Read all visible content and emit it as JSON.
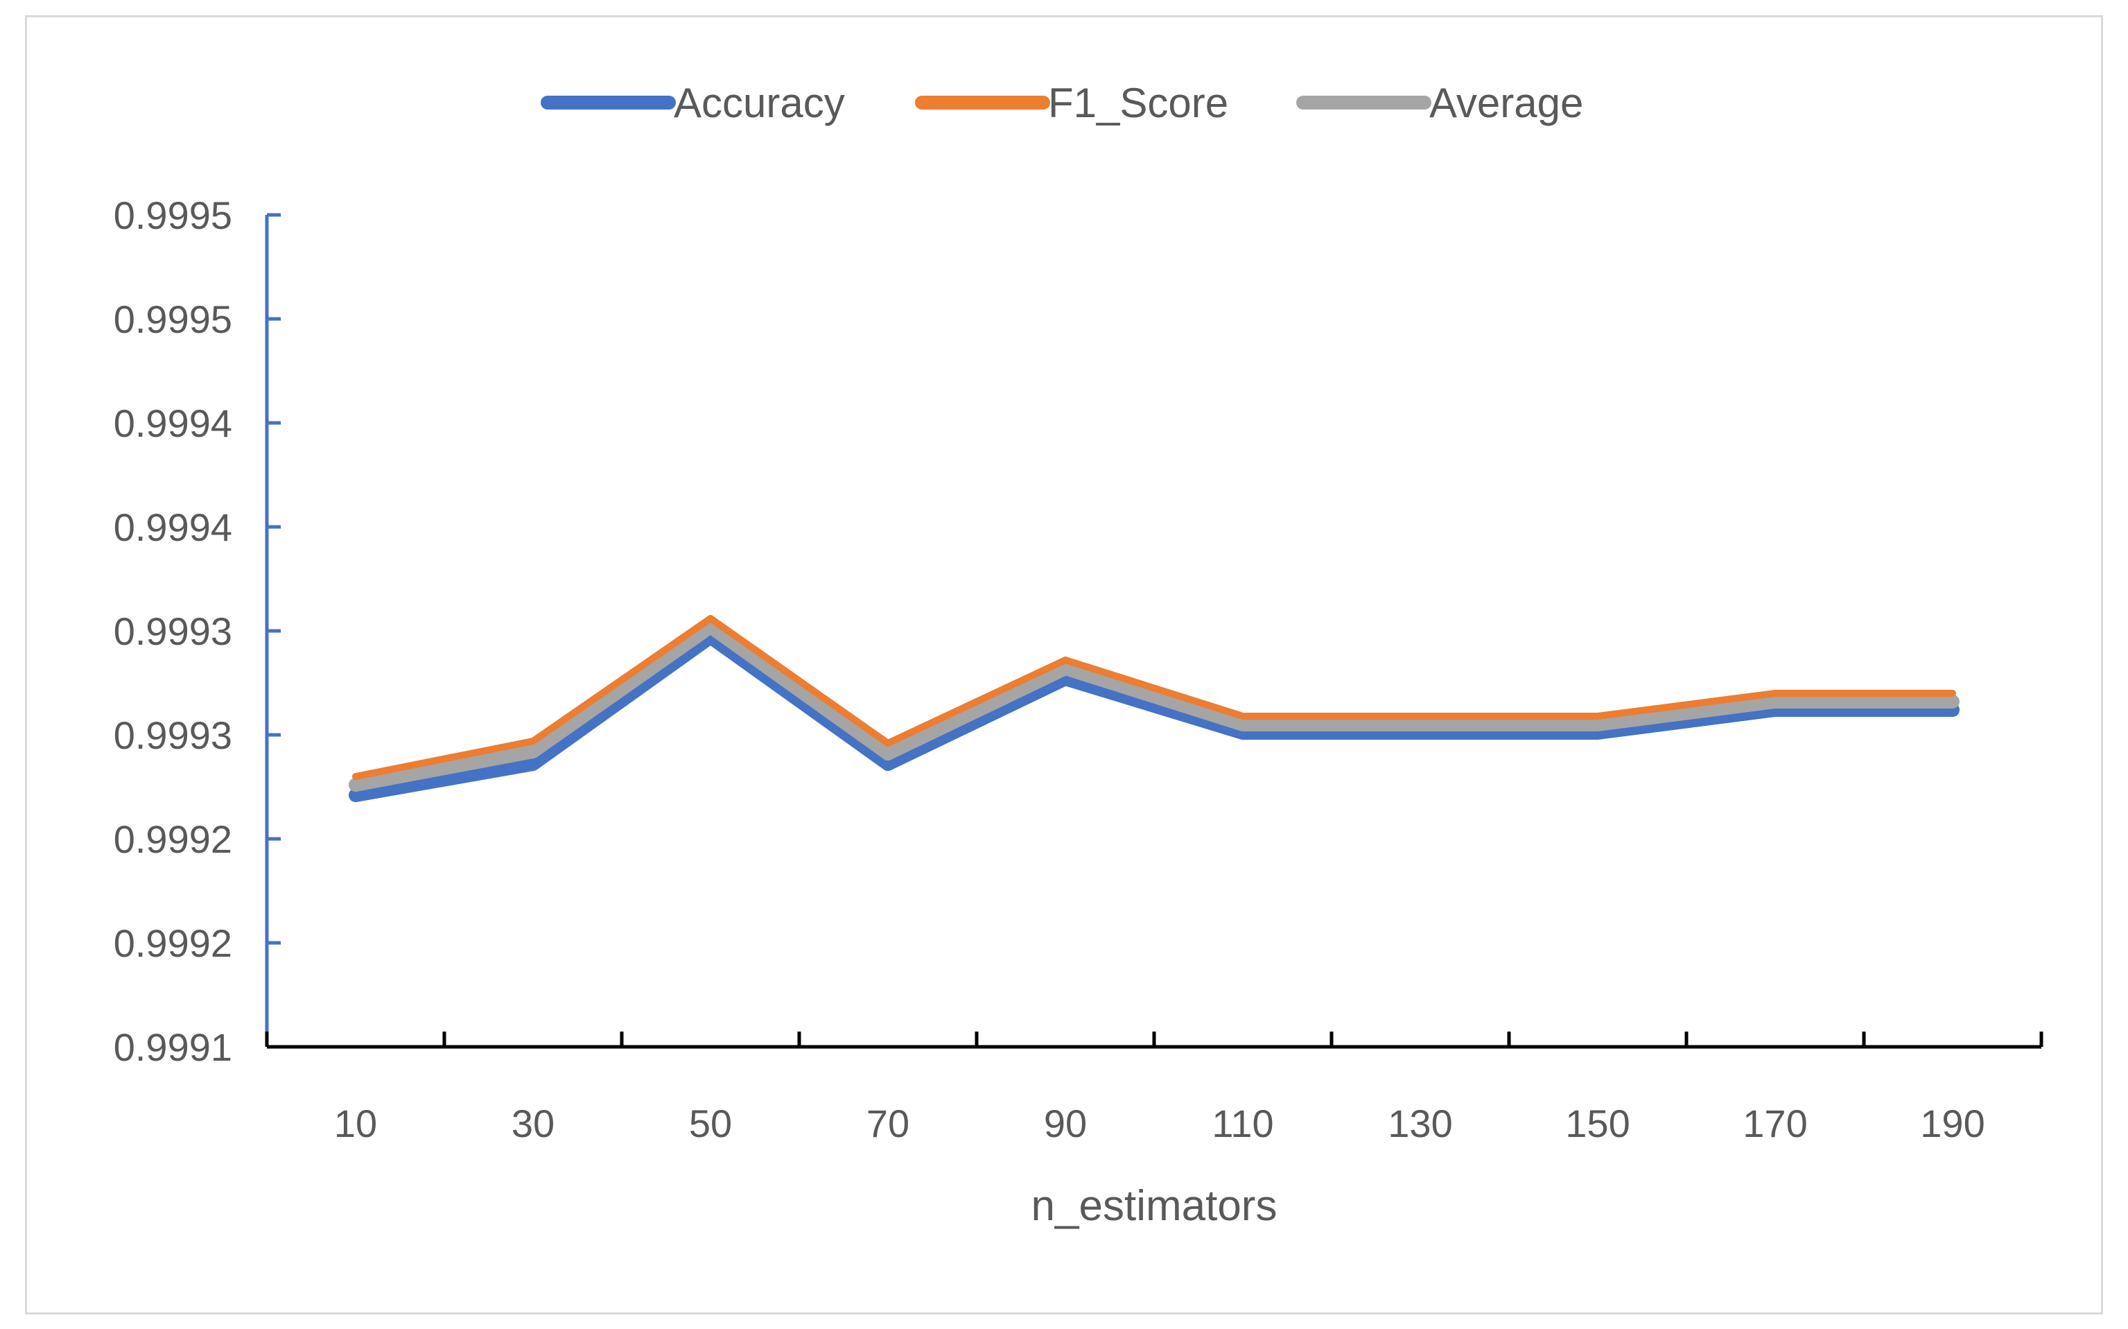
{
  "chart_data": {
    "type": "line",
    "categories": [
      "10",
      "30",
      "50",
      "70",
      "90",
      "110",
      "130",
      "150",
      "170",
      "190"
    ],
    "series": [
      {
        "name": "Accuracy",
        "color": "#4472c4",
        "values": [
          0.999271,
          0.999286,
          0.999347,
          0.999286,
          0.999327,
          0.999301,
          0.999301,
          0.999301,
          0.999312,
          0.999312
        ]
      },
      {
        "name": "F1_Score",
        "color": "#ed7d31",
        "values": [
          0.99928,
          0.999297,
          0.999356,
          0.999296,
          0.999336,
          0.999309,
          0.999309,
          0.999309,
          0.99932,
          0.99932
        ]
      },
      {
        "name": "Average",
        "color": "#a5a5a5",
        "values": [
          0.999276,
          0.999292,
          0.999352,
          0.999291,
          0.999332,
          0.999305,
          0.999305,
          0.999305,
          0.999316,
          0.999316
        ]
      }
    ],
    "xlabel": "n_estimators",
    "ylabel": "",
    "ylim": [
      0.99915,
      0.99955
    ],
    "y_tick_values": [
      0.99915,
      0.9992,
      0.99925,
      0.9993,
      0.99935,
      0.9994,
      0.99945,
      0.9995,
      0.99955
    ],
    "y_tick_labels": [
      "0.9991",
      "0.9992",
      "0.9992",
      "0.9993",
      "0.9993",
      "0.9994",
      "0.9994",
      "0.9995",
      "0.9995"
    ],
    "legend_position": "top",
    "grid": false,
    "axis_color": "#4472c4"
  }
}
